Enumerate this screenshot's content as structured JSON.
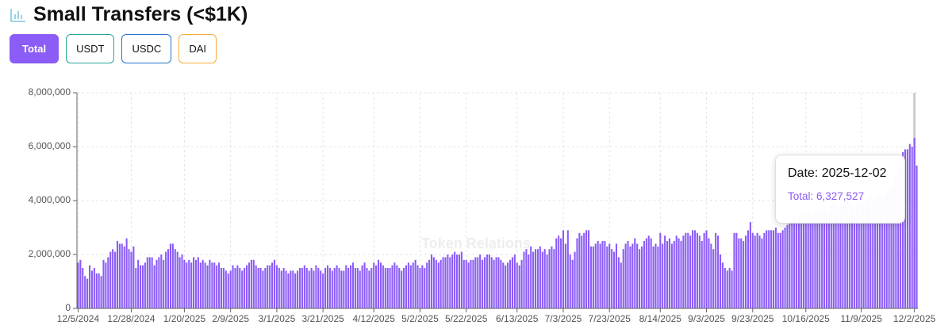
{
  "header": {
    "title": "Small Transfers (<$1K)"
  },
  "filters": [
    "Total",
    "USDT",
    "USDC",
    "DAI"
  ],
  "chart_data": {
    "type": "bar",
    "color": "#8b5cf6",
    "ylim": [
      0,
      8000000
    ],
    "yticks": [
      0,
      {
        "value": 2000000,
        "label": "2,000,000"
      },
      {
        "value": 4000000,
        "label": "4,000,000"
      },
      {
        "value": 6000000,
        "label": "6,000,000"
      },
      {
        "value": 8000000,
        "label": "8,000,000"
      }
    ],
    "grid": true,
    "watermark": "Token Relations",
    "tooltip": {
      "date": "Date: 2025-12-02",
      "value": "Total: 6,327,527"
    },
    "categories": [
      "12/5/2024",
      null,
      null,
      null,
      null,
      null,
      null,
      null,
      null,
      null,
      null,
      null,
      null,
      null,
      null,
      null,
      null,
      null,
      null,
      null,
      null,
      null,
      null,
      "12/28/2024",
      null,
      null,
      null,
      null,
      null,
      null,
      null,
      null,
      null,
      null,
      null,
      null,
      null,
      null,
      null,
      null,
      null,
      null,
      null,
      null,
      null,
      null,
      "1/20/2025",
      null,
      null,
      null,
      null,
      null,
      null,
      null,
      null,
      null,
      null,
      null,
      null,
      null,
      null,
      null,
      null,
      null,
      null,
      null,
      "2/9/2025",
      null,
      null,
      null,
      null,
      null,
      null,
      null,
      null,
      null,
      null,
      null,
      null,
      null,
      null,
      null,
      null,
      null,
      null,
      null,
      "3/1/2025",
      null,
      null,
      null,
      null,
      null,
      null,
      null,
      null,
      null,
      null,
      null,
      null,
      null,
      null,
      null,
      null,
      null,
      null,
      null,
      "3/21/2025",
      null,
      null,
      null,
      null,
      null,
      null,
      null,
      null,
      null,
      null,
      null,
      null,
      null,
      null,
      null,
      null,
      null,
      null,
      null,
      null,
      null,
      "4/12/2025",
      null,
      null,
      null,
      null,
      null,
      null,
      null,
      null,
      null,
      null,
      null,
      null,
      null,
      null,
      null,
      null,
      null,
      null,
      null,
      "5/2/2025",
      null,
      null,
      null,
      null,
      null,
      null,
      null,
      null,
      null,
      null,
      null,
      null,
      null,
      null,
      null,
      null,
      null,
      null,
      null,
      "5/22/2025",
      null,
      null,
      null,
      null,
      null,
      null,
      null,
      null,
      null,
      null,
      null,
      null,
      null,
      null,
      null,
      null,
      null,
      null,
      null,
      null,
      null,
      "6/13/2025",
      null,
      null,
      null,
      null,
      null,
      null,
      null,
      null,
      null,
      null,
      null,
      null,
      null,
      null,
      null,
      null,
      null,
      null,
      null,
      "7/3/2025",
      null,
      null,
      null,
      null,
      null,
      null,
      null,
      null,
      null,
      null,
      null,
      null,
      null,
      null,
      null,
      null,
      null,
      null,
      null,
      "7/23/2025",
      null,
      null,
      null,
      null,
      null,
      null,
      null,
      null,
      null,
      null,
      null,
      null,
      null,
      null,
      null,
      null,
      null,
      null,
      null,
      null,
      null,
      "8/14/2025",
      null,
      null,
      null,
      null,
      null,
      null,
      null,
      null,
      null,
      null,
      null,
      null,
      null,
      null,
      null,
      null,
      null,
      null,
      null,
      "9/3/2025",
      null,
      null,
      null,
      null,
      null,
      null,
      null,
      null,
      null,
      null,
      null,
      null,
      null,
      null,
      null,
      null,
      null,
      null,
      null,
      "9/23/2025",
      null,
      null,
      null,
      null,
      null,
      null,
      null,
      null,
      null,
      null,
      null,
      null,
      null,
      null,
      null,
      null,
      null,
      null,
      null,
      null,
      null,
      null,
      "10/16/2025",
      null,
      null,
      null,
      null,
      null,
      null,
      null,
      null,
      null,
      null,
      null,
      null,
      null,
      null,
      null,
      null,
      null,
      null,
      null,
      null,
      null,
      null,
      null,
      "11/9/2025",
      null,
      null,
      null,
      null,
      null,
      null,
      null,
      null,
      null,
      null,
      null,
      null,
      null,
      null,
      null,
      null,
      null,
      null,
      null,
      null,
      null,
      null,
      "12/2/2025",
      null
    ],
    "values": [
      1700000,
      1800000,
      1500000,
      1200000,
      1100000,
      1600000,
      1400000,
      1500000,
      1300000,
      1300000,
      1200000,
      1800000,
      1700000,
      1900000,
      2100000,
      2200000,
      2100000,
      2500000,
      2400000,
      2400000,
      2300000,
      2600000,
      2200000,
      2100000,
      2300000,
      1500000,
      1800000,
      1600000,
      1600000,
      1700000,
      1900000,
      1900000,
      1900000,
      1600000,
      1800000,
      1900000,
      2000000,
      1800000,
      2100000,
      2200000,
      2400000,
      2400000,
      2200000,
      2100000,
      1900000,
      2000000,
      1800000,
      1700000,
      1800000,
      1700000,
      1900000,
      1800000,
      1900000,
      1700000,
      1800000,
      1700000,
      1600000,
      1800000,
      1700000,
      1700000,
      1600000,
      1700000,
      1500000,
      1500000,
      1400000,
      1300000,
      1400000,
      1600000,
      1500000,
      1600000,
      1500000,
      1400000,
      1500000,
      1600000,
      1700000,
      1800000,
      1800000,
      1600000,
      1500000,
      1500000,
      1400000,
      1500000,
      1600000,
      1600000,
      1700000,
      1800000,
      1600000,
      1500000,
      1400000,
      1500000,
      1400000,
      1300000,
      1400000,
      1400000,
      1300000,
      1400000,
      1500000,
      1500000,
      1600000,
      1500000,
      1400000,
      1500000,
      1400000,
      1600000,
      1500000,
      1400000,
      1300000,
      1500000,
      1600000,
      1500000,
      1400000,
      1500000,
      1600000,
      1500000,
      1400000,
      1400000,
      1600000,
      1500000,
      1600000,
      1700000,
      1500000,
      1500000,
      1400000,
      1600000,
      1700000,
      1500000,
      1400000,
      1500000,
      1700000,
      1600000,
      1800000,
      1700000,
      1600000,
      1500000,
      1500000,
      1500000,
      1600000,
      1700000,
      1600000,
      1500000,
      1400000,
      1500000,
      1600000,
      1700000,
      1600000,
      1700000,
      1800000,
      1600000,
      1500000,
      1600000,
      1500000,
      1700000,
      1800000,
      2000000,
      1900000,
      1800000,
      1700000,
      1800000,
      1900000,
      1900000,
      2000000,
      1900000,
      2000000,
      2100000,
      2000000,
      2000000,
      2100000,
      1800000,
      1800000,
      1700000,
      1800000,
      1800000,
      1900000,
      1900000,
      2000000,
      1800000,
      1900000,
      2000000,
      2000000,
      1900000,
      1800000,
      1900000,
      1900000,
      1800000,
      1700000,
      1600000,
      1700000,
      1800000,
      1900000,
      2000000,
      1700000,
      1600000,
      1800000,
      2100000,
      2200000,
      2000000,
      2300000,
      2100000,
      2200000,
      2200000,
      2300000,
      2100000,
      2200000,
      2000000,
      2200000,
      2300000,
      2200000,
      2600000,
      2700000,
      2600000,
      2900000,
      2400000,
      2900000,
      2000000,
      1800000,
      2100000,
      2600000,
      2800000,
      2700000,
      2800000,
      2900000,
      2900000,
      2300000,
      2300000,
      2400000,
      2500000,
      2400000,
      2500000,
      2500000,
      2300000,
      2400000,
      2200000,
      2100000,
      2400000,
      1900000,
      1700000,
      2200000,
      2400000,
      2500000,
      2300000,
      2400000,
      2600000,
      2400000,
      2200000,
      2300000,
      2500000,
      2600000,
      2700000,
      2600000,
      2300000,
      2400000,
      2300000,
      2800000,
      2400000,
      2700000,
      2500000,
      2600000,
      2400000,
      2500000,
      2700000,
      2600000,
      2500000,
      2700000,
      2800000,
      2800000,
      2700000,
      2900000,
      2900000,
      2800000,
      2700000,
      2500000,
      2800000,
      2900000,
      2600000,
      2400000,
      2200000,
      2800000,
      2700000,
      2000000,
      1700000,
      1500000,
      1400000,
      1500000,
      1400000,
      2800000,
      2800000,
      2600000,
      2600000,
      2500000,
      2700000,
      2900000,
      3200000,
      2800000,
      2700000,
      2800000,
      2700000,
      2600000,
      2800000,
      2900000,
      2900000,
      2900000,
      2900000,
      3000000,
      2800000,
      2800000,
      2900000,
      3000000,
      3100000,
      3200000,
      3300000,
      3400000,
      3300000,
      3400000,
      3500000,
      3600000,
      3400000,
      3600000,
      3500000,
      3400000,
      3600000,
      3700000,
      3600000,
      3500000,
      3800000,
      3700000,
      3600000,
      3800000,
      3900000,
      3800000,
      3700000,
      3900000,
      3800000,
      3900000,
      4000000,
      3900000,
      3800000,
      3700000,
      3900000,
      4000000,
      4100000,
      4000000,
      3900000,
      4100000,
      4200000,
      4000000,
      4100000,
      4200000,
      4300000,
      4100000,
      4200000,
      4300000,
      4400000,
      4500000,
      4600000,
      4800000,
      5000000,
      5400000,
      5800000,
      5900000,
      5900000,
      6100000,
      6000000,
      6327527,
      5300000
    ]
  }
}
